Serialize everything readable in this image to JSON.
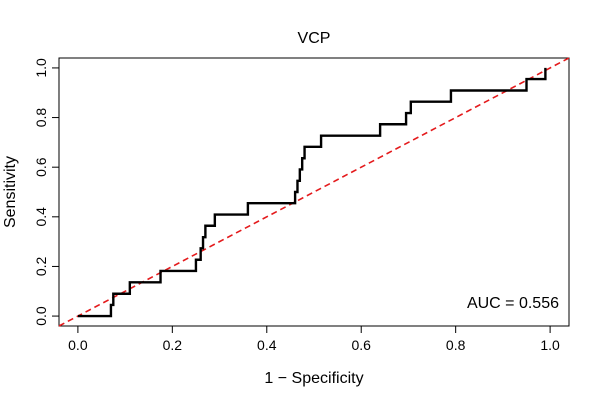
{
  "chart_data": {
    "type": "line",
    "title": "VCP",
    "xlabel": "1 − Specificity",
    "ylabel": "Sensitivity",
    "xlim": [
      -0.04,
      1.04
    ],
    "ylim": [
      -0.04,
      1.04
    ],
    "grid": false,
    "x_ticks": [
      0,
      0.2,
      0.4,
      0.6,
      0.8,
      1
    ],
    "x_tick_labels": [
      "0.0",
      "0.2",
      "0.4",
      "0.6",
      "0.8",
      "1.0"
    ],
    "y_ticks": [
      0,
      0.2,
      0.4,
      0.6,
      0.8,
      1
    ],
    "y_tick_labels": [
      "0.0",
      "0.2",
      "0.4",
      "0.6",
      "0.8",
      "1.0"
    ],
    "annotation": "AUC = 0.556",
    "series": [
      {
        "name": "ROC curve",
        "color": "#000000",
        "x": [
          0.0,
          0.07,
          0.07,
          0.075,
          0.075,
          0.085,
          0.085,
          0.11,
          0.11,
          0.175,
          0.175,
          0.25,
          0.25,
          0.26,
          0.26,
          0.265,
          0.265,
          0.27,
          0.27,
          0.29,
          0.29,
          0.36,
          0.36,
          0.46,
          0.46,
          0.465,
          0.465,
          0.47,
          0.47,
          0.475,
          0.475,
          0.48,
          0.48,
          0.515,
          0.515,
          0.64,
          0.64,
          0.695,
          0.695,
          0.705,
          0.705,
          0.79,
          0.79,
          0.95,
          0.95,
          0.99,
          0.99
        ],
        "y": [
          0.0,
          0.0,
          0.045,
          0.045,
          0.09,
          0.09,
          0.09,
          0.09,
          0.136,
          0.136,
          0.182,
          0.182,
          0.227,
          0.227,
          0.273,
          0.273,
          0.318,
          0.318,
          0.364,
          0.364,
          0.409,
          0.409,
          0.455,
          0.455,
          0.5,
          0.5,
          0.545,
          0.545,
          0.591,
          0.591,
          0.636,
          0.636,
          0.682,
          0.682,
          0.727,
          0.727,
          0.773,
          0.773,
          0.818,
          0.818,
          0.864,
          0.864,
          0.909,
          0.909,
          0.955,
          0.955,
          1.0
        ]
      },
      {
        "name": "Reference line",
        "color": "#e41a1c",
        "dashed": true,
        "x": [
          -0.04,
          1.04
        ],
        "y": [
          -0.04,
          1.04
        ]
      }
    ]
  }
}
